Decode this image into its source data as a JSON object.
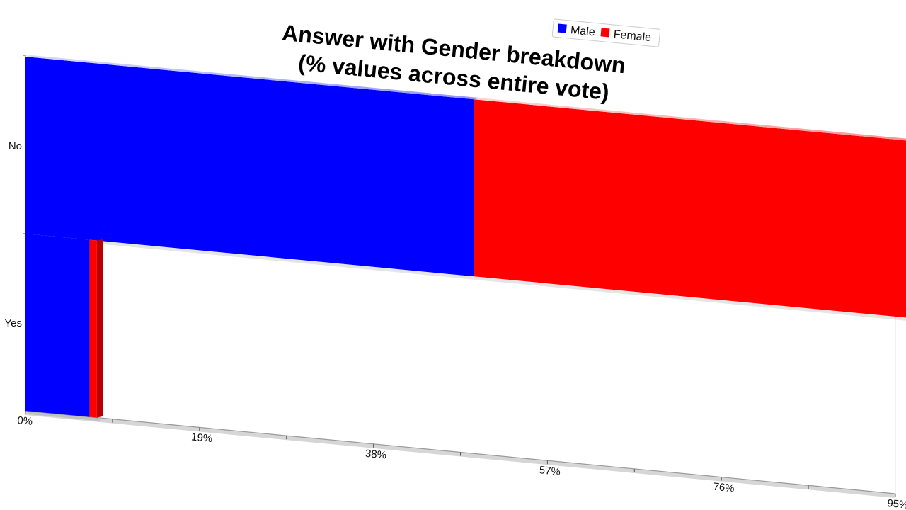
{
  "chart_data": {
    "type": "bar",
    "orientation": "horizontal",
    "stacked": true,
    "title": [
      "Answer with Gender breakdown",
      "(% values across entire vote)"
    ],
    "categories": [
      "No",
      "Yes"
    ],
    "series": [
      {
        "name": "Male",
        "values": [
          49,
          7
        ],
        "color": "#0000ff"
      },
      {
        "name": "Female",
        "values": [
          49.5,
          0.8
        ],
        "color": "#ff0000"
      }
    ],
    "x_ticks": [
      "0%",
      "19%",
      "38%",
      "57%",
      "76%",
      "95%"
    ],
    "xlim": [
      0,
      95
    ],
    "legend_position": "top-right",
    "grid": false,
    "style": "3d-perspective"
  }
}
